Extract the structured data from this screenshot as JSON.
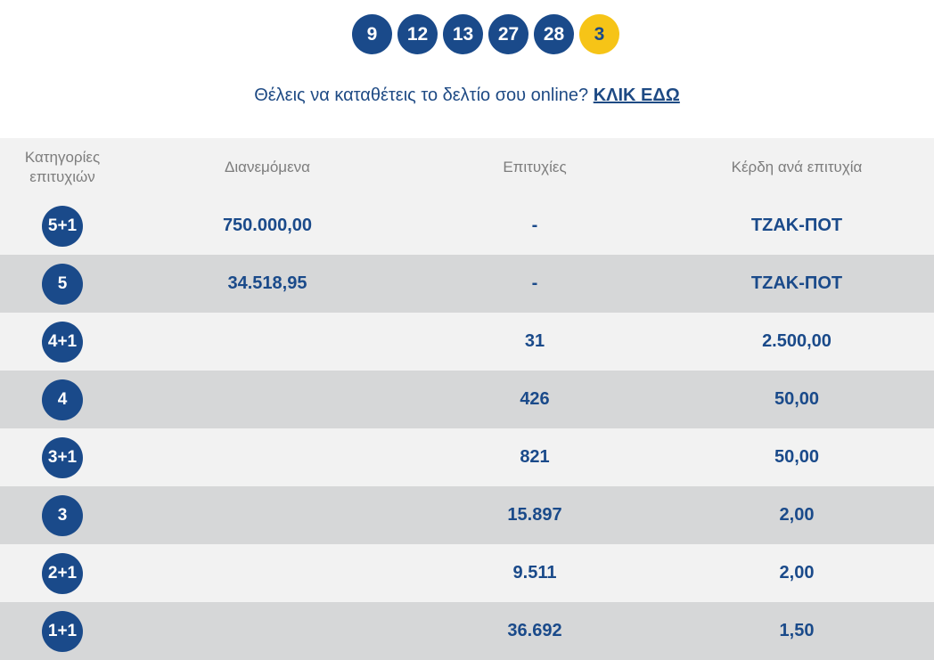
{
  "draw": {
    "numbers": [
      "9",
      "12",
      "13",
      "27",
      "28"
    ],
    "bonus": "3"
  },
  "promo": {
    "text": "Θέλεις να καταθέτεις το δελτίο σου online? ",
    "link_label": "ΚΛΙΚ ΕΔΩ"
  },
  "table": {
    "headers": {
      "category": "Κατηγορίες επιτυχιών",
      "distributed": "Διανεμόμενα",
      "winners": "Επιτυχίες",
      "prize": "Κέρδη ανά επιτυχία"
    },
    "rows": [
      {
        "category": "5+1",
        "distributed": "750.000,00",
        "winners": "-",
        "prize": "ΤΖΑΚ-ΠΟΤ"
      },
      {
        "category": "5",
        "distributed": "34.518,95",
        "winners": "-",
        "prize": "ΤΖΑΚ-ΠΟΤ"
      },
      {
        "category": "4+1",
        "distributed": "",
        "winners": "31",
        "prize": "2.500,00"
      },
      {
        "category": "4",
        "distributed": "",
        "winners": "426",
        "prize": "50,00"
      },
      {
        "category": "3+1",
        "distributed": "",
        "winners": "821",
        "prize": "50,00"
      },
      {
        "category": "3",
        "distributed": "",
        "winners": "15.897",
        "prize": "2,00"
      },
      {
        "category": "2+1",
        "distributed": "",
        "winners": "9.511",
        "prize": "2,00"
      },
      {
        "category": "1+1",
        "distributed": "",
        "winners": "36.692",
        "prize": "1,50"
      }
    ]
  },
  "colors": {
    "primary": "#1a4a8a",
    "bonus": "#f6c417",
    "row_light": "#f2f2f2",
    "row_dark": "#d6d7d8"
  }
}
